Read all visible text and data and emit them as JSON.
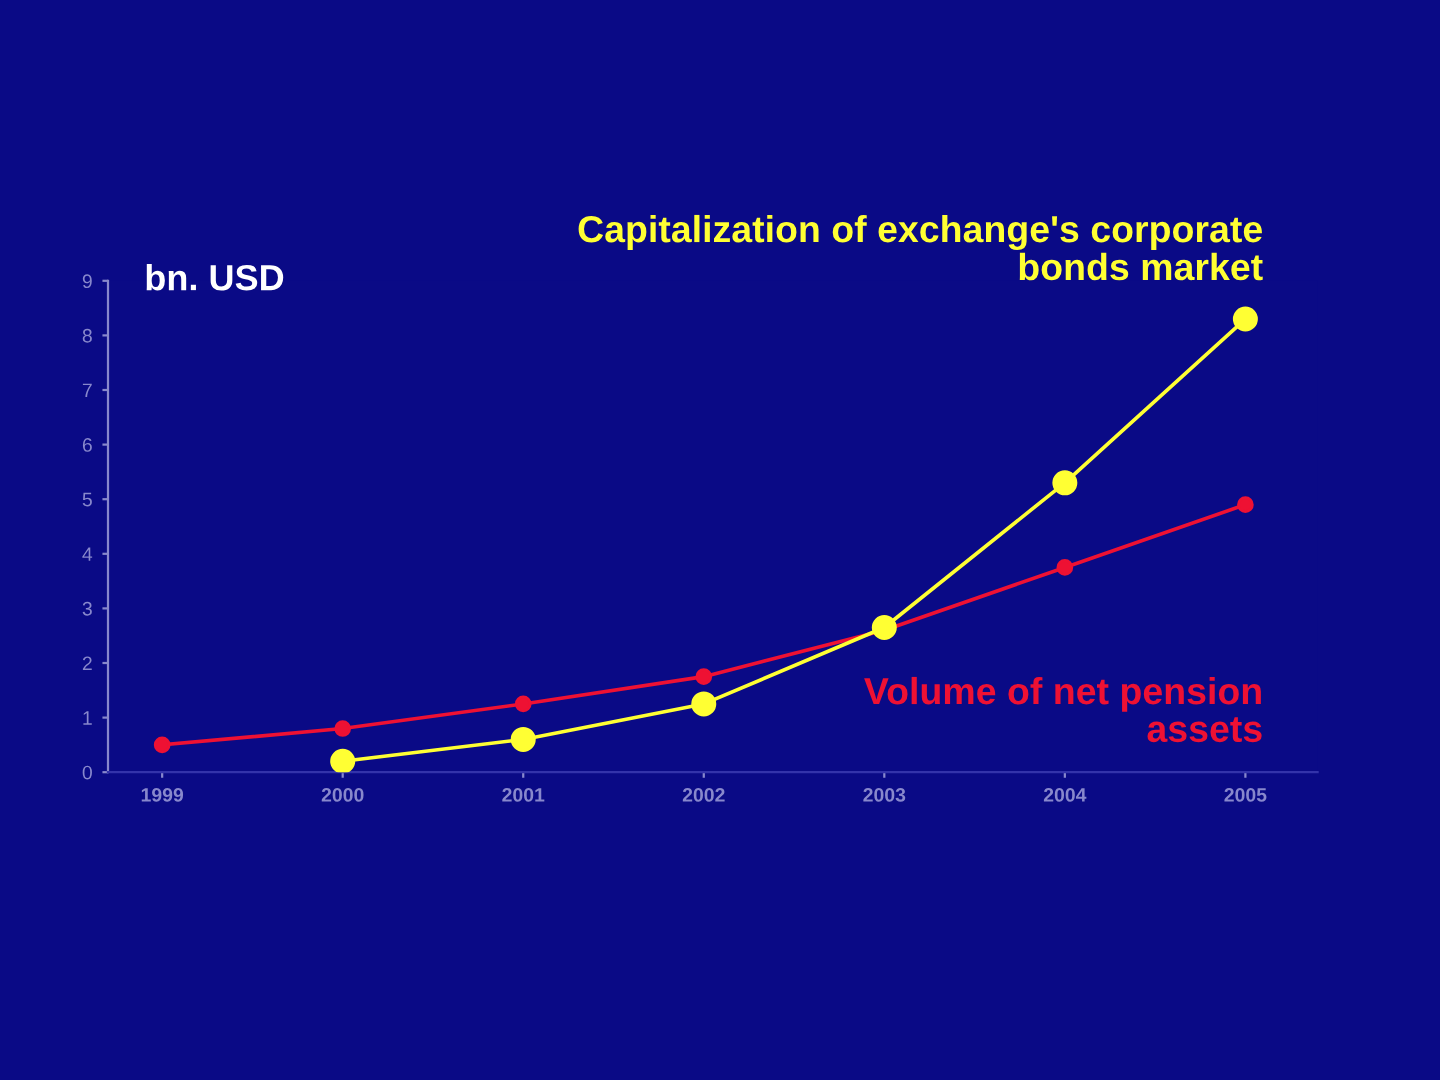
{
  "chart_data": {
    "type": "line",
    "ylabel": "bn. USD",
    "categories": [
      "1999",
      "2000",
      "2001",
      "2002",
      "2003",
      "2004",
      "2005"
    ],
    "series": [
      {
        "name": "Capitalization of exchange's corporate bonds market",
        "color": "#ffff33",
        "values": [
          null,
          0.2,
          0.6,
          1.25,
          2.65,
          5.3,
          8.3
        ]
      },
      {
        "name": "Volume of net pension assets",
        "color": "#ee1133",
        "values": [
          0.5,
          0.8,
          1.25,
          1.75,
          2.6,
          3.75,
          4.9
        ]
      }
    ],
    "ylim": [
      0,
      9
    ],
    "yticks": [
      0,
      1,
      2,
      3,
      4,
      5,
      6,
      7,
      8,
      9
    ],
    "grid": false,
    "legend": false,
    "marker": "circle",
    "line_style": "solid"
  }
}
